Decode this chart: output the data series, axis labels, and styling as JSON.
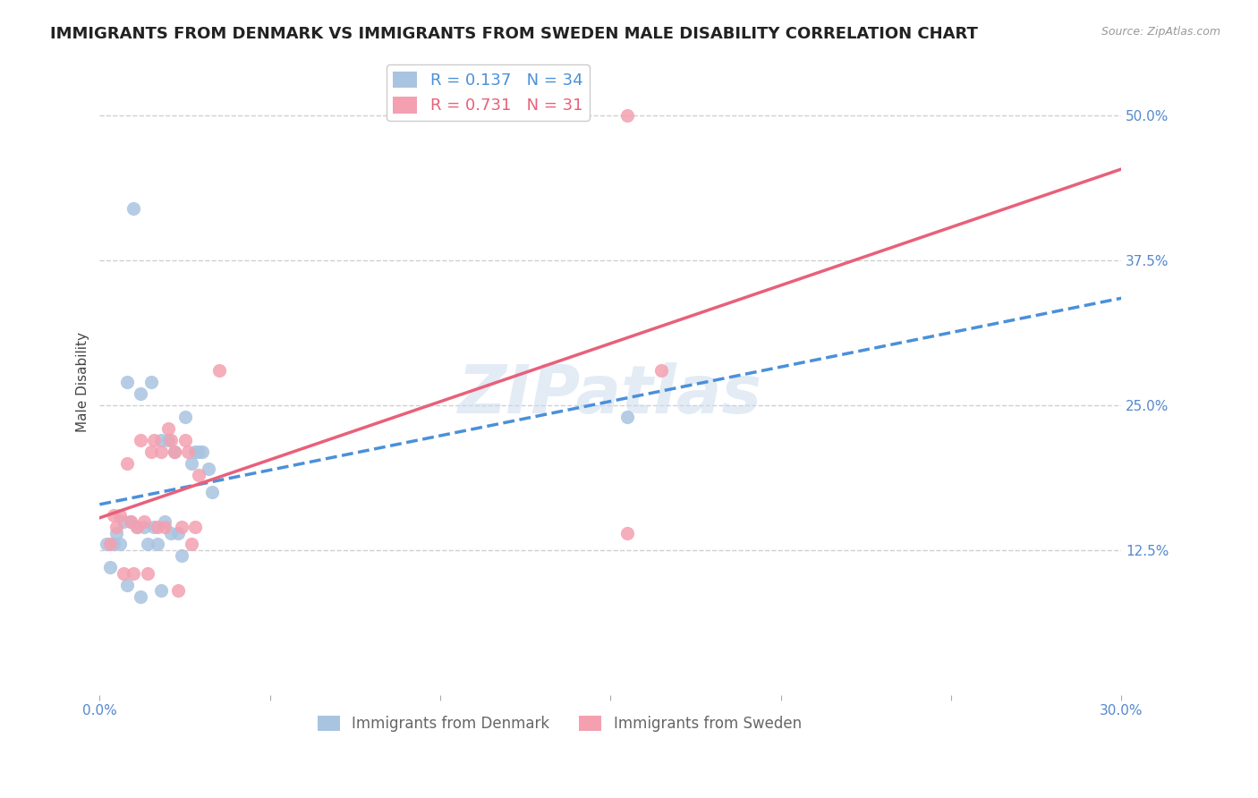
{
  "title": "IMMIGRANTS FROM DENMARK VS IMMIGRANTS FROM SWEDEN MALE DISABILITY CORRELATION CHART",
  "source": "Source: ZipAtlas.com",
  "ylabel": "Male Disability",
  "ytick_labels": [
    "12.5%",
    "25.0%",
    "37.5%",
    "50.0%"
  ],
  "ytick_values": [
    0.125,
    0.25,
    0.375,
    0.5
  ],
  "xlim": [
    0.0,
    0.3
  ],
  "ylim": [
    0.0,
    0.54
  ],
  "denmark_color": "#a8c4e0",
  "sweden_color": "#f4a0b0",
  "denmark_R": 0.137,
  "denmark_N": 34,
  "sweden_R": 0.731,
  "sweden_N": 31,
  "denmark_line_color": "#4a90d9",
  "sweden_line_color": "#e8607a",
  "denmark_scatter_x": [
    0.01,
    0.008,
    0.012,
    0.015,
    0.02,
    0.025,
    0.018,
    0.022,
    0.03,
    0.005,
    0.007,
    0.009,
    0.011,
    0.013,
    0.016,
    0.019,
    0.023,
    0.027,
    0.032,
    0.004,
    0.006,
    0.014,
    0.017,
    0.021,
    0.028,
    0.033,
    0.002,
    0.003,
    0.008,
    0.012,
    0.018,
    0.024,
    0.029,
    0.155
  ],
  "denmark_scatter_y": [
    0.42,
    0.27,
    0.26,
    0.27,
    0.22,
    0.24,
    0.22,
    0.21,
    0.21,
    0.14,
    0.15,
    0.15,
    0.145,
    0.145,
    0.145,
    0.15,
    0.14,
    0.2,
    0.195,
    0.13,
    0.13,
    0.13,
    0.13,
    0.14,
    0.21,
    0.175,
    0.13,
    0.11,
    0.095,
    0.085,
    0.09,
    0.12,
    0.21,
    0.24
  ],
  "sweden_scatter_x": [
    0.005,
    0.008,
    0.012,
    0.016,
    0.02,
    0.025,
    0.029,
    0.035,
    0.009,
    0.013,
    0.017,
    0.021,
    0.026,
    0.004,
    0.006,
    0.011,
    0.015,
    0.019,
    0.024,
    0.028,
    0.007,
    0.014,
    0.018,
    0.022,
    0.027,
    0.003,
    0.01,
    0.023,
    0.155,
    0.155,
    0.165
  ],
  "sweden_scatter_y": [
    0.145,
    0.2,
    0.22,
    0.22,
    0.23,
    0.22,
    0.19,
    0.28,
    0.15,
    0.15,
    0.145,
    0.22,
    0.21,
    0.155,
    0.155,
    0.145,
    0.21,
    0.145,
    0.145,
    0.145,
    0.105,
    0.105,
    0.21,
    0.21,
    0.13,
    0.13,
    0.105,
    0.09,
    0.5,
    0.14,
    0.28
  ],
  "watermark": "ZIPatlas",
  "background_color": "#ffffff",
  "grid_color": "#d0d0d0",
  "tick_color": "#5588cc",
  "title_fontsize": 13,
  "axis_label_fontsize": 11,
  "tick_fontsize": 11
}
